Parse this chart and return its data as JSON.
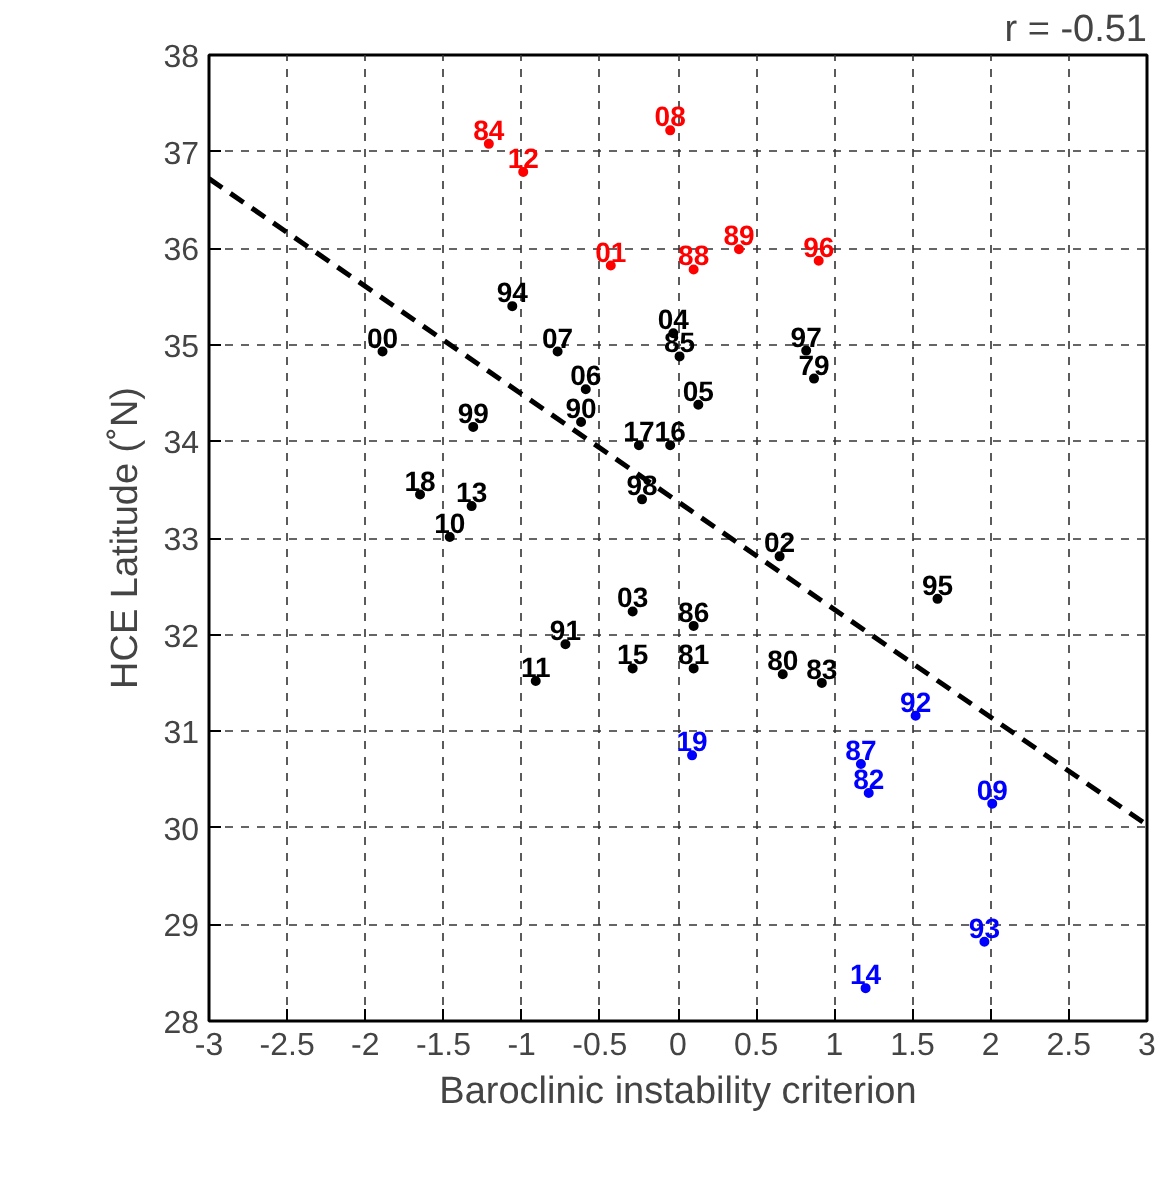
{
  "chart_data": {
    "type": "scatter",
    "xlabel": "Baroclinic instability criterion",
    "ylabel": "HCE Latitude (˚N)",
    "xlim": [
      -3,
      3
    ],
    "ylim": [
      28,
      38
    ],
    "xticks": [
      -3,
      -2.5,
      -2,
      -1.5,
      -1,
      -0.5,
      0,
      0.5,
      1,
      1.5,
      2,
      2.5,
      3
    ],
    "yticks": [
      28,
      29,
      30,
      31,
      32,
      33,
      34,
      35,
      36,
      37,
      38
    ],
    "grid": true,
    "marker": "circle",
    "series": [
      {
        "color": "#ff0000",
        "x": [
          -1.21,
          -0.99,
          -0.05,
          -0.43,
          0.1,
          0.39,
          0.9
        ],
        "values": [
          37.08,
          36.79,
          37.22,
          35.82,
          35.78,
          35.99,
          35.87
        ]
      },
      {
        "color": "#000000",
        "x": [
          -1.06,
          -1.89,
          -0.77,
          -0.03,
          0.01,
          0.82,
          0.87,
          -0.59,
          0.13,
          -0.62,
          -1.31,
          -0.25,
          -0.05,
          -1.65,
          -1.32,
          -0.23,
          -1.46,
          0.65,
          1.66,
          -0.29,
          0.1,
          -0.72,
          -0.29,
          0.1,
          -0.91,
          0.67,
          0.92
        ],
        "values": [
          35.4,
          34.93,
          34.93,
          35.12,
          34.88,
          34.94,
          34.65,
          34.54,
          34.38,
          34.2,
          34.15,
          33.96,
          33.96,
          33.45,
          33.33,
          33.4,
          33.01,
          32.81,
          32.37,
          32.24,
          32.09,
          31.9,
          31.65,
          31.65,
          31.52,
          31.59,
          31.5
        ]
      },
      {
        "color": "#0000ff",
        "x": [
          1.52,
          0.09,
          1.17,
          1.22,
          2.01,
          1.96,
          1.2
        ],
        "values": [
          31.16,
          30.75,
          30.66,
          30.36,
          30.25,
          28.82,
          28.34
        ]
      },
      {
        "type": "line",
        "color": "#000000",
        "line_style": "dashed",
        "marker": "none",
        "x": [
          -3,
          3
        ],
        "values": [
          36.72,
          30.03
        ]
      }
    ],
    "annotations": [
      "r = -0.51",
      {
        "text": "84",
        "x": -1.21,
        "y": 37.08
      },
      {
        "text": "12",
        "x": -0.99,
        "y": 36.79
      },
      {
        "text": "08",
        "x": -0.05,
        "y": 37.22
      },
      {
        "text": "01",
        "x": -0.43,
        "y": 35.82
      },
      {
        "text": "88",
        "x": 0.1,
        "y": 35.78
      },
      {
        "text": "89",
        "x": 0.39,
        "y": 35.99
      },
      {
        "text": "96",
        "x": 0.9,
        "y": 35.87
      },
      {
        "text": "94",
        "x": -1.06,
        "y": 35.4
      },
      {
        "text": "00",
        "x": -1.89,
        "y": 34.93
      },
      {
        "text": "07",
        "x": -0.77,
        "y": 34.93
      },
      {
        "text": "04",
        "x": -0.03,
        "y": 35.12
      },
      {
        "text": "85",
        "x": 0.01,
        "y": 34.88
      },
      {
        "text": "97",
        "x": 0.82,
        "y": 34.94
      },
      {
        "text": "79",
        "x": 0.87,
        "y": 34.65
      },
      {
        "text": "06",
        "x": -0.59,
        "y": 34.54
      },
      {
        "text": "05",
        "x": 0.13,
        "y": 34.38
      },
      {
        "text": "90",
        "x": -0.62,
        "y": 34.2
      },
      {
        "text": "99",
        "x": -1.31,
        "y": 34.15
      },
      {
        "text": "17",
        "x": -0.25,
        "y": 33.96
      },
      {
        "text": "16",
        "x": -0.05,
        "y": 33.96
      },
      {
        "text": "18",
        "x": -1.65,
        "y": 33.45
      },
      {
        "text": "13",
        "x": -1.32,
        "y": 33.33
      },
      {
        "text": "98",
        "x": -0.23,
        "y": 33.4
      },
      {
        "text": "10",
        "x": -1.46,
        "y": 33.01
      },
      {
        "text": "02",
        "x": 0.65,
        "y": 32.81
      },
      {
        "text": "95",
        "x": 1.66,
        "y": 32.37
      },
      {
        "text": "03",
        "x": -0.29,
        "y": 32.24
      },
      {
        "text": "86",
        "x": 0.1,
        "y": 32.09
      },
      {
        "text": "91",
        "x": -0.72,
        "y": 31.9
      },
      {
        "text": "15",
        "x": -0.29,
        "y": 31.65
      },
      {
        "text": "81",
        "x": 0.1,
        "y": 31.65
      },
      {
        "text": "11",
        "x": -0.91,
        "y": 31.52
      },
      {
        "text": "80",
        "x": 0.67,
        "y": 31.59
      },
      {
        "text": "83",
        "x": 0.92,
        "y": 31.5
      },
      {
        "text": "92",
        "x": 1.52,
        "y": 31.16
      },
      {
        "text": "19",
        "x": 0.09,
        "y": 30.75
      },
      {
        "text": "87",
        "x": 1.17,
        "y": 30.66
      },
      {
        "text": "82",
        "x": 1.22,
        "y": 30.36
      },
      {
        "text": "09",
        "x": 2.01,
        "y": 30.25
      },
      {
        "text": "93",
        "x": 1.96,
        "y": 28.82
      },
      {
        "text": "14",
        "x": 1.2,
        "y": 28.34
      }
    ]
  }
}
